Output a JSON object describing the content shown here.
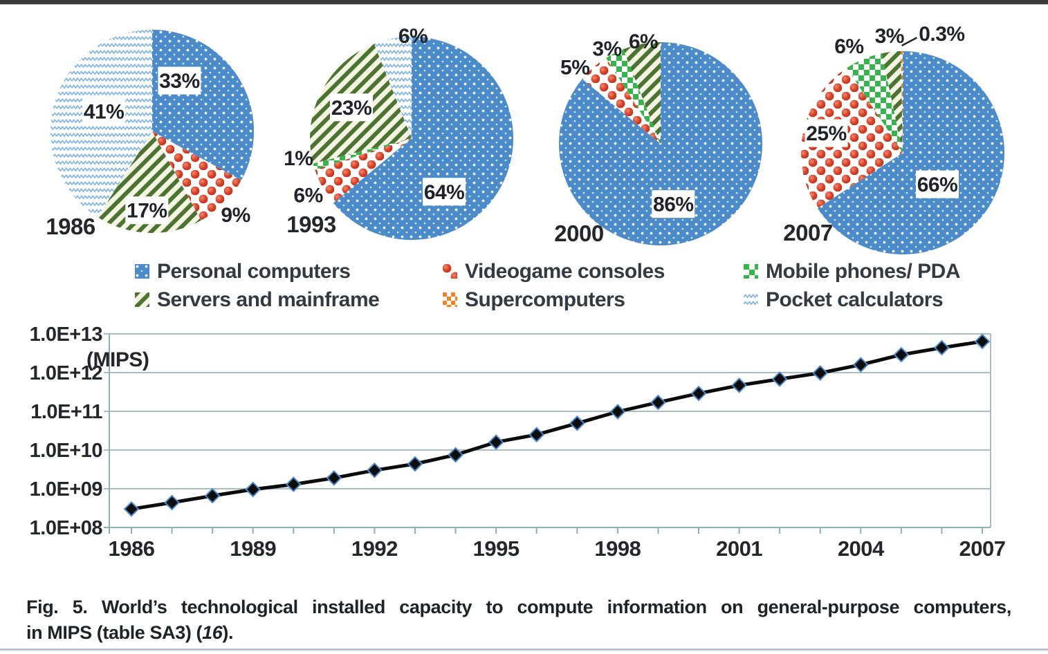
{
  "colors": {
    "personal_computers": "#4C8BC9",
    "videogame_consoles": "#CF3A22",
    "mobile_phones": "#33B54A",
    "servers_mainframe": "#4D7332",
    "supercomputers": "#F5821F",
    "pocket_calculators": "#84B8E2",
    "grid": "#A9BEC4",
    "axis": "#8FAFB8",
    "line": "#0B0B0B",
    "text": "#23272C",
    "top_bar": "#3B3B3B",
    "bottom_rule": "#B5C7D3"
  },
  "legend": {
    "items": [
      {
        "label": "Personal computers",
        "series": "personal_computers",
        "swatch": "blue-dots-swatch"
      },
      {
        "label": "Servers and mainframe",
        "series": "servers_mainframe",
        "swatch": "green-stripes-swatch"
      },
      {
        "label": "Videogame consoles",
        "series": "videogame_consoles",
        "swatch": "red-balls-swatch"
      },
      {
        "label": "Supercomputers",
        "series": "supercomputers",
        "swatch": "orange-checker-swatch"
      },
      {
        "label": "Mobile phones/ PDA",
        "series": "mobile_phones",
        "swatch": "green-checker-swatch"
      },
      {
        "label": "Pocket calculators",
        "series": "pocket_calculators",
        "swatch": "blue-waves-swatch"
      }
    ]
  },
  "chart_data": [
    {
      "type": "pie",
      "year": "1986",
      "slices": [
        {
          "series": "personal_computers",
          "label": "33%",
          "value": 33
        },
        {
          "series": "videogame_consoles",
          "label": "9%",
          "value": 9
        },
        {
          "series": "servers_mainframe",
          "label": "17%",
          "value": 17
        },
        {
          "series": "pocket_calculators",
          "label": "41%",
          "value": 41
        }
      ]
    },
    {
      "type": "pie",
      "year": "1993",
      "slices": [
        {
          "series": "personal_computers",
          "label": "64%",
          "value": 64
        },
        {
          "series": "videogame_consoles",
          "label": "6%",
          "value": 6
        },
        {
          "series": "mobile_phones",
          "label": "1%",
          "value": 1
        },
        {
          "series": "servers_mainframe",
          "label": "23%",
          "value": 23
        },
        {
          "series": "pocket_calculators",
          "label": "6%",
          "value": 6
        }
      ]
    },
    {
      "type": "pie",
      "year": "2000",
      "slices": [
        {
          "series": "personal_computers",
          "label": "86%",
          "value": 86
        },
        {
          "series": "videogame_consoles",
          "label": "5%",
          "value": 5
        },
        {
          "series": "mobile_phones",
          "label": "3%",
          "value": 3
        },
        {
          "series": "servers_mainframe",
          "label": "6%",
          "value": 6
        }
      ]
    },
    {
      "type": "pie",
      "year": "2007",
      "slices": [
        {
          "series": "personal_computers",
          "label": "66%",
          "value": 66
        },
        {
          "series": "videogame_consoles",
          "label": "25%",
          "value": 25
        },
        {
          "series": "mobile_phones",
          "label": "6%",
          "value": 6
        },
        {
          "series": "servers_mainframe",
          "label": "3%",
          "value": 3
        },
        {
          "series": "supercomputers",
          "label": "0.3%",
          "value": 0.3
        }
      ]
    },
    {
      "type": "line",
      "ylabel": "(MIPS)",
      "log_scale": true,
      "grid": true,
      "marker": "diamond",
      "ylim": [
        100000000.0,
        10000000000000.0
      ],
      "ytick_labels": [
        "1.0E+13",
        "1.0E+12",
        "1.0E+11",
        "1.0E+10",
        "1.0E+09",
        "1.0E+08"
      ],
      "xtick_labels": [
        "1986",
        "1989",
        "1992",
        "1995",
        "1998",
        "2001",
        "2004",
        "2007"
      ],
      "x": [
        1986,
        1987,
        1988,
        1989,
        1990,
        1991,
        1992,
        1993,
        1994,
        1995,
        1996,
        1997,
        1998,
        1999,
        2000,
        2001,
        2002,
        2003,
        2004,
        2005,
        2006,
        2007
      ],
      "values": [
        300000000.0,
        440000000.0,
        660000000.0,
        960000000.0,
        1300000000.0,
        1900000000.0,
        3000000000.0,
        4400000000.0,
        7500000000.0,
        16000000000.0,
        25000000000.0,
        49000000000.0,
        98000000000.0,
        170000000000.0,
        290000000000.0,
        470000000000.0,
        680000000000.0,
        980000000000.0,
        1600000000000.0,
        2900000000000.0,
        4400000000000.0,
        6400000000000.0
      ]
    }
  ],
  "figure": {
    "caption": {
      "fig_label": "Fig. 5.",
      "line1": "World’s technological installed capacity to compute information on general-purpose computers,",
      "line2_pre": "in MIPS (table SA3) (",
      "line2_ref": "16",
      "line2_post": ")."
    }
  }
}
